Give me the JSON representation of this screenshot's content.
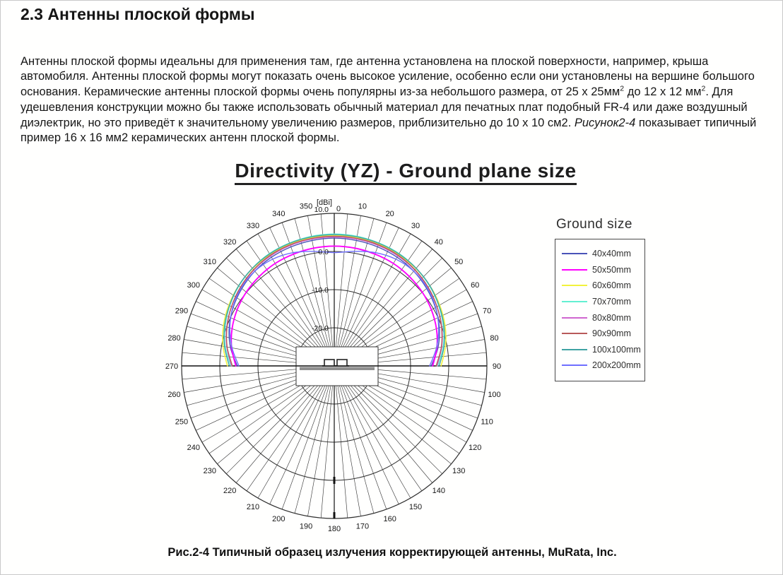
{
  "page": {
    "heading": "2.3 Антенны плоской формы",
    "paragraph": [
      {
        "text": "Антенны плоской формы идеальны для применения там, где антенна установлена на плоской поверхности, например, крыша автомобиля. Антенны плоской формы могут показать очень высокое усиление, особенно если они установлены на вершине большого основания. Керамические антенны плоской формы очень популярны из-за небольшого размера, от 25 х 25мм"
      },
      {
        "text": "2",
        "style": "sup"
      },
      {
        "text": " до 12 х 12 мм"
      },
      {
        "text": "2",
        "style": "sup"
      },
      {
        "text": ". Для удешевления конструкции можно бы также использовать обычный материал для печатных плат подобный FR-4 или даже воздушный диэлектрик, но это приведёт к значительному увеличению размеров, приблизительно до 10 х 10 см2. "
      },
      {
        "text": "Рисунок2-4",
        "style": "italic"
      },
      {
        "text": " показывает типичный пример 16 х 16 мм2 керамических антенн плоской формы."
      }
    ],
    "caption": "Рис.2-4 Типичный образец излучения корректирующей антенны, MuRata, Inc."
  },
  "chart_data": {
    "type": "line",
    "projection": "polar",
    "title": "Directivity (YZ) - Ground plane size",
    "radial_unit": "[dBi]",
    "legend_title": "Ground size",
    "legend_position": "right",
    "rlim": [
      -30,
      10
    ],
    "radial_ticks": [
      "10.0",
      "0.0",
      "-10.0",
      "-20.0"
    ],
    "radial_tick_values": [
      10,
      0,
      -10,
      -20
    ],
    "angle_label_step_deg": 10,
    "spoke_step_deg": 5,
    "zero_angle_label": "0",
    "angles_deg": [
      -90,
      -80,
      -70,
      -60,
      -50,
      -40,
      -30,
      -20,
      -10,
      0,
      10,
      20,
      30,
      40,
      50,
      60,
      70,
      80,
      90
    ],
    "series": [
      {
        "name": "40x40mm",
        "color": "#4953b8",
        "values": [
          -4.6,
          -2.4,
          -0.7,
          0.6,
          1.6,
          2.4,
          2.9,
          3.2,
          3.4,
          3.5,
          3.4,
          3.2,
          2.9,
          2.4,
          1.6,
          0.6,
          -0.7,
          -2.4,
          -4.6
        ]
      },
      {
        "name": "50x50mm",
        "color": "#ff00ff",
        "values": [
          -4.2,
          -2.7,
          -1.5,
          -0.6,
          0.1,
          0.6,
          1.0,
          1.2,
          1.35,
          1.4,
          1.35,
          1.2,
          1.0,
          0.6,
          0.1,
          -0.6,
          -1.5,
          -2.7,
          -4.2
        ]
      },
      {
        "name": "60x60mm",
        "color": "#f2f23c",
        "values": [
          -2.0,
          -0.4,
          0.9,
          1.9,
          2.7,
          3.3,
          3.7,
          4.0,
          4.15,
          4.2,
          4.15,
          4.0,
          3.7,
          3.3,
          2.7,
          1.9,
          0.9,
          -0.4,
          -2.0
        ]
      },
      {
        "name": "70x70mm",
        "color": "#63f0d2",
        "values": [
          -2.9,
          -1.0,
          0.4,
          1.6,
          2.6,
          3.4,
          4.0,
          4.3,
          4.5,
          4.6,
          4.5,
          4.3,
          4.0,
          3.4,
          2.6,
          1.6,
          0.4,
          -1.0,
          -2.9
        ]
      },
      {
        "name": "80x80mm",
        "color": "#cf66cf",
        "values": [
          -3.1,
          -1.4,
          0.0,
          1.1,
          2.0,
          2.8,
          3.3,
          3.6,
          3.75,
          3.8,
          3.75,
          3.6,
          3.3,
          2.8,
          2.0,
          1.1,
          0.0,
          -1.4,
          -3.1
        ]
      },
      {
        "name": "90x90mm",
        "color": "#b85a5a",
        "values": [
          -3.3,
          -1.5,
          -0.1,
          1.1,
          2.1,
          2.9,
          3.5,
          3.8,
          3.95,
          4.0,
          3.95,
          3.8,
          3.5,
          2.9,
          2.1,
          1.1,
          -0.1,
          -1.5,
          -3.3
        ]
      },
      {
        "name": "100x100mm",
        "color": "#3fa3a3",
        "values": [
          -2.5,
          -0.8,
          0.6,
          1.7,
          2.7,
          3.4,
          3.9,
          4.2,
          4.35,
          4.4,
          4.35,
          4.2,
          3.9,
          3.4,
          2.7,
          1.7,
          0.6,
          -0.8,
          -2.5
        ]
      },
      {
        "name": "200x200mm",
        "color": "#6f6fff",
        "values": [
          -5.0,
          -2.8,
          -0.9,
          0.7,
          1.8,
          2.4,
          2.3,
          1.6,
          0.5,
          -0.3,
          0.5,
          1.6,
          2.3,
          2.4,
          1.8,
          0.7,
          -0.9,
          -2.8,
          -5.0
        ]
      }
    ],
    "annotations": {
      "center_drawing": "patch-antenna-on-ground-plane-cross-section"
    }
  }
}
